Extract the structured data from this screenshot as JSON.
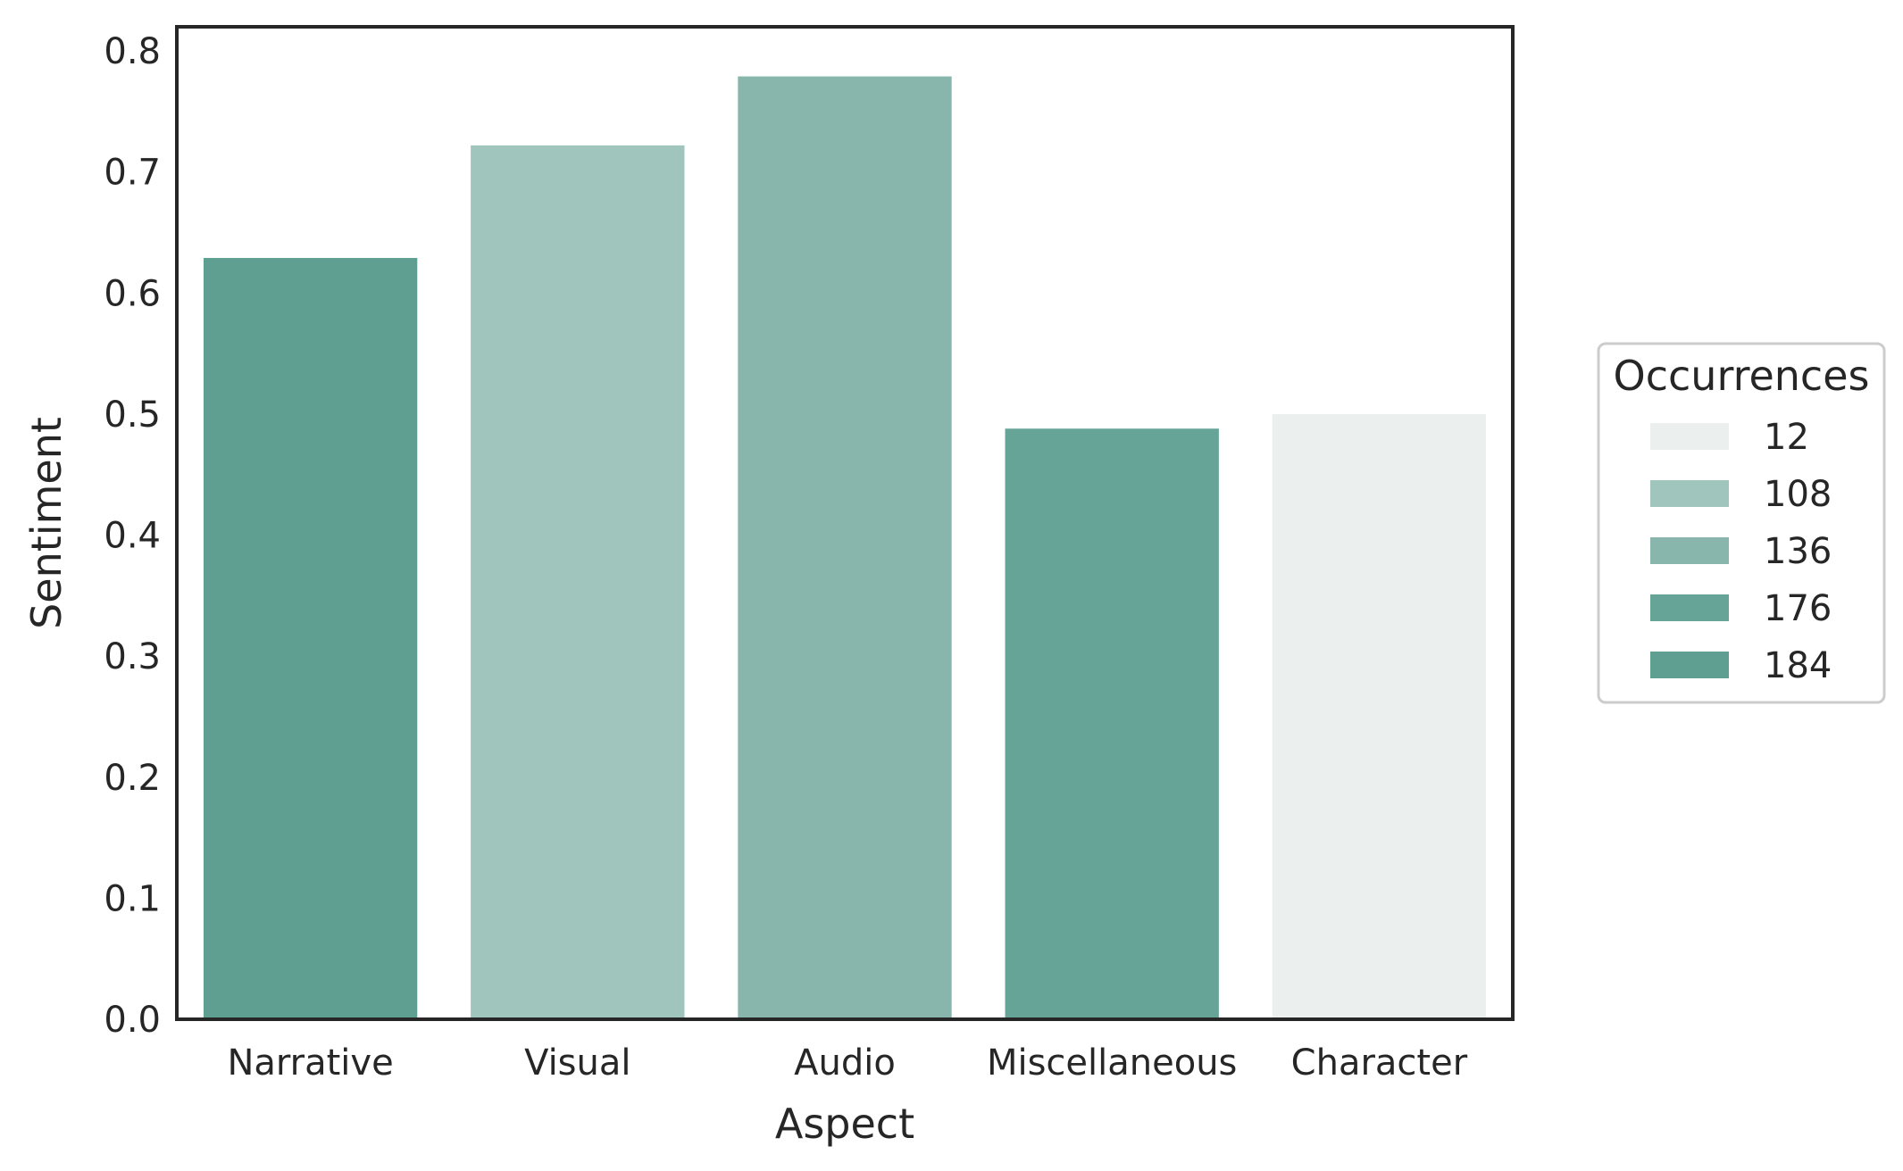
{
  "chart_data": {
    "type": "bar",
    "title": "",
    "xlabel": "Aspect",
    "ylabel": "Sentiment",
    "ylim": [
      0,
      0.82
    ],
    "yticks": [
      "0.0",
      "0.1",
      "0.2",
      "0.3",
      "0.4",
      "0.5",
      "0.6",
      "0.7",
      "0.8"
    ],
    "categories": [
      "Narrative",
      "Visual",
      "Audio",
      "Miscellaneous",
      "Character"
    ],
    "values": [
      0.629,
      0.722,
      0.779,
      0.488,
      0.5
    ],
    "occurrences": [
      184,
      108,
      136,
      176,
      12
    ],
    "grid": false,
    "legend": {
      "title": "Occurrences",
      "placement": "right",
      "entries": [
        {
          "label": "12",
          "color": "#ebefee"
        },
        {
          "label": "108",
          "color": "#a0c5bd"
        },
        {
          "label": "136",
          "color": "#89b6ac"
        },
        {
          "label": "176",
          "color": "#66a498"
        },
        {
          "label": "184",
          "color": "#5f9f92"
        }
      ]
    }
  }
}
